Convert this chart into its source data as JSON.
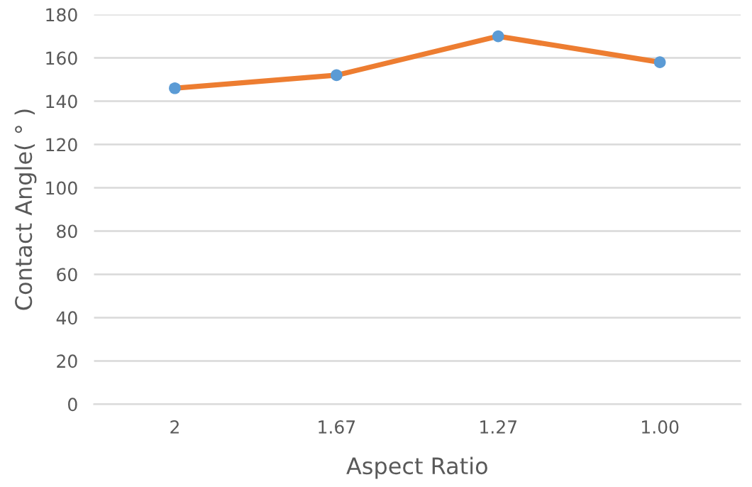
{
  "chart_data": {
    "type": "line",
    "xlabel": "Aspect Ratio",
    "ylabel": "Contact Angle( ° )",
    "categories": [
      "2",
      "1.67",
      "1.27",
      "1.00"
    ],
    "series": [
      {
        "color": "#ed7d31",
        "colors": [
          "#5b9bd5",
          "#5b9bd5",
          "#5b9bd5",
          "#5b9bd5"
        ],
        "values": [
          146,
          152,
          170,
          158
        ]
      }
    ],
    "ylim": [
      0,
      180
    ],
    "yticks": [
      0,
      20,
      40,
      60,
      80,
      100,
      120,
      140,
      160,
      180
    ],
    "grid": "y",
    "marker": "circle",
    "line_style": "solid"
  }
}
